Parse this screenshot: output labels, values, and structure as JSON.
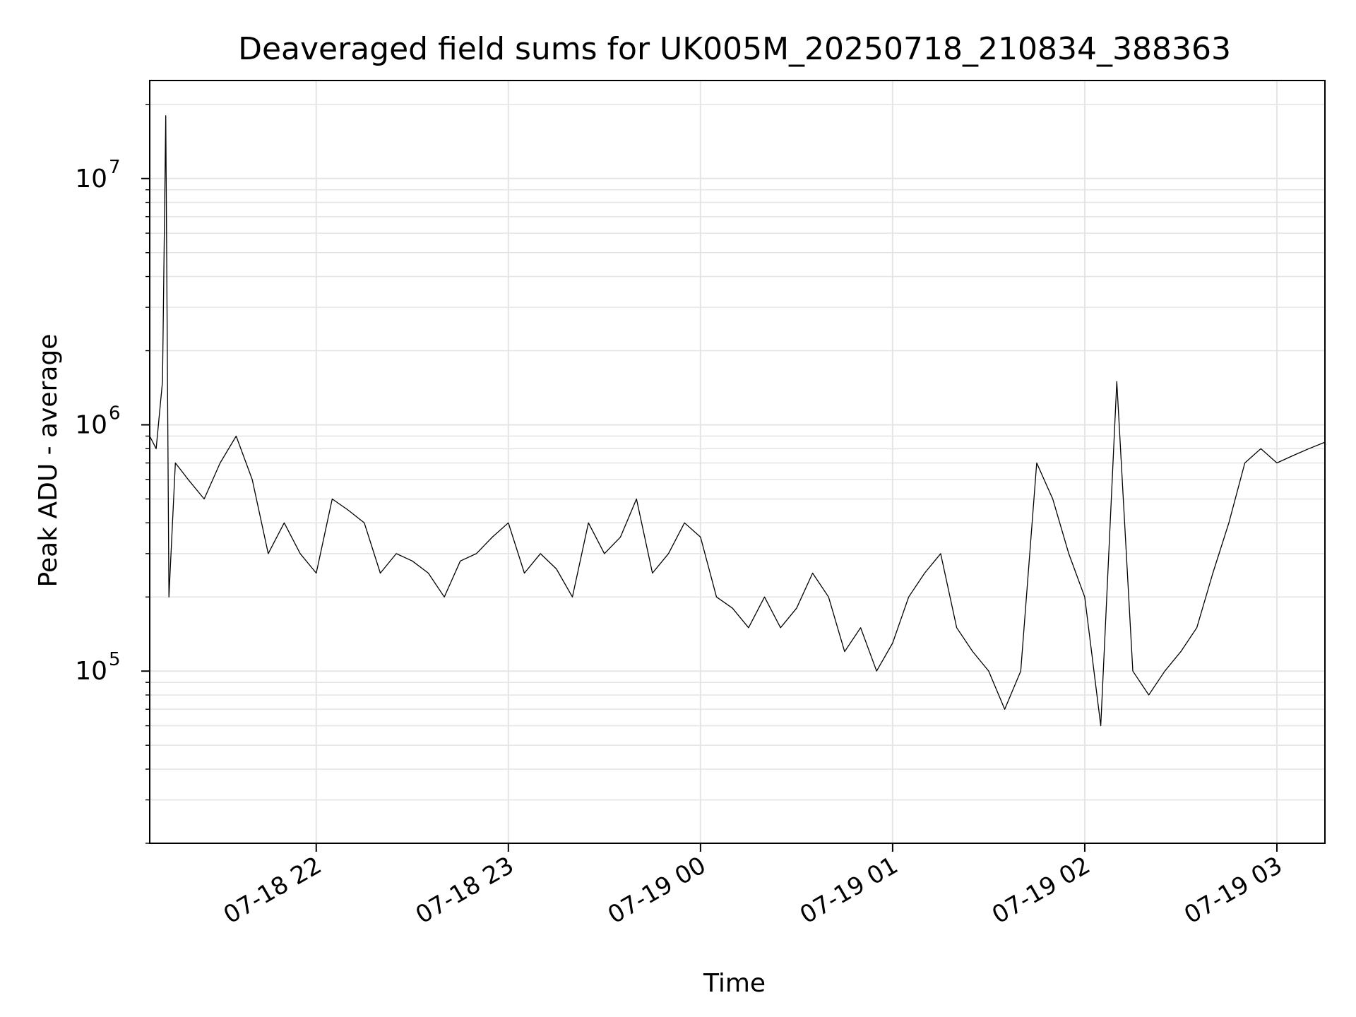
{
  "chart_data": {
    "type": "line",
    "title": "Deaveraged field sums for UK005M_20250718_210834_388363",
    "xlabel": "Time",
    "ylabel": "Peak ADU - average",
    "y_scale": "log",
    "ylim": [
      20000,
      25000000
    ],
    "xlim": [
      "2025-07-18 21:08",
      "2025-07-19 03:15"
    ],
    "grid": true,
    "line_color": "#000000",
    "grid_color": "#e5e5e5",
    "x_ticks": [
      {
        "value": "2025-07-18 22:00",
        "label": "07-18 22"
      },
      {
        "value": "2025-07-18 23:00",
        "label": "07-18 23"
      },
      {
        "value": "2025-07-19 00:00",
        "label": "07-19 00"
      },
      {
        "value": "2025-07-19 01:00",
        "label": "07-19 01"
      },
      {
        "value": "2025-07-19 02:00",
        "label": "07-19 02"
      },
      {
        "value": "2025-07-19 03:00",
        "label": "07-19 03"
      }
    ],
    "y_ticks": [
      {
        "value": 100000,
        "base": "10",
        "exp": "5"
      },
      {
        "value": 1000000,
        "base": "10",
        "exp": "6"
      },
      {
        "value": 10000000,
        "base": "10",
        "exp": "7"
      }
    ],
    "series": [
      {
        "x": [
          "2025-07-18 21:08",
          "2025-07-18 21:10",
          "2025-07-18 21:12",
          "2025-07-18 21:13",
          "2025-07-18 21:14",
          "2025-07-18 21:16",
          "2025-07-18 21:20",
          "2025-07-18 21:25",
          "2025-07-18 21:30",
          "2025-07-18 21:35",
          "2025-07-18 21:40",
          "2025-07-18 21:45",
          "2025-07-18 21:50",
          "2025-07-18 21:55",
          "2025-07-18 22:00",
          "2025-07-18 22:05",
          "2025-07-18 22:10",
          "2025-07-18 22:15",
          "2025-07-18 22:20",
          "2025-07-18 22:25",
          "2025-07-18 22:30",
          "2025-07-18 22:35",
          "2025-07-18 22:40",
          "2025-07-18 22:45",
          "2025-07-18 22:50",
          "2025-07-18 22:55",
          "2025-07-18 23:00",
          "2025-07-18 23:05",
          "2025-07-18 23:10",
          "2025-07-18 23:15",
          "2025-07-18 23:20",
          "2025-07-18 23:25",
          "2025-07-18 23:30",
          "2025-07-18 23:35",
          "2025-07-18 23:40",
          "2025-07-18 23:45",
          "2025-07-18 23:50",
          "2025-07-18 23:55",
          "2025-07-19 00:00",
          "2025-07-19 00:05",
          "2025-07-19 00:10",
          "2025-07-19 00:15",
          "2025-07-19 00:20",
          "2025-07-19 00:25",
          "2025-07-19 00:30",
          "2025-07-19 00:35",
          "2025-07-19 00:40",
          "2025-07-19 00:45",
          "2025-07-19 00:50",
          "2025-07-19 00:55",
          "2025-07-19 01:00",
          "2025-07-19 01:05",
          "2025-07-19 01:10",
          "2025-07-19 01:15",
          "2025-07-19 01:20",
          "2025-07-19 01:25",
          "2025-07-19 01:30",
          "2025-07-19 01:35",
          "2025-07-19 01:40",
          "2025-07-19 01:45",
          "2025-07-19 01:50",
          "2025-07-19 01:55",
          "2025-07-19 02:00",
          "2025-07-19 02:05",
          "2025-07-19 02:10",
          "2025-07-19 02:15",
          "2025-07-19 02:20",
          "2025-07-19 02:25",
          "2025-07-19 02:30",
          "2025-07-19 02:35",
          "2025-07-19 02:40",
          "2025-07-19 02:45",
          "2025-07-19 02:50",
          "2025-07-19 02:55",
          "2025-07-19 03:00",
          "2025-07-19 03:05",
          "2025-07-19 03:10",
          "2025-07-19 03:15"
        ],
        "y": [
          900000,
          800000,
          1500000,
          18000000,
          200000,
          700000,
          600000,
          500000,
          700000,
          900000,
          600000,
          300000,
          400000,
          300000,
          250000,
          500000,
          450000,
          400000,
          250000,
          300000,
          280000,
          250000,
          200000,
          280000,
          300000,
          350000,
          400000,
          250000,
          300000,
          260000,
          200000,
          400000,
          300000,
          350000,
          500000,
          250000,
          300000,
          400000,
          350000,
          200000,
          180000,
          150000,
          200000,
          150000,
          180000,
          250000,
          200000,
          120000,
          150000,
          100000,
          130000,
          200000,
          250000,
          300000,
          150000,
          120000,
          100000,
          70000,
          100000,
          700000,
          500000,
          300000,
          200000,
          60000,
          1500000,
          100000,
          80000,
          100000,
          120000,
          150000,
          250000,
          400000,
          700000,
          800000,
          700000,
          750000,
          800000,
          850000
        ],
        "stats_note": ""
      }
    ]
  }
}
